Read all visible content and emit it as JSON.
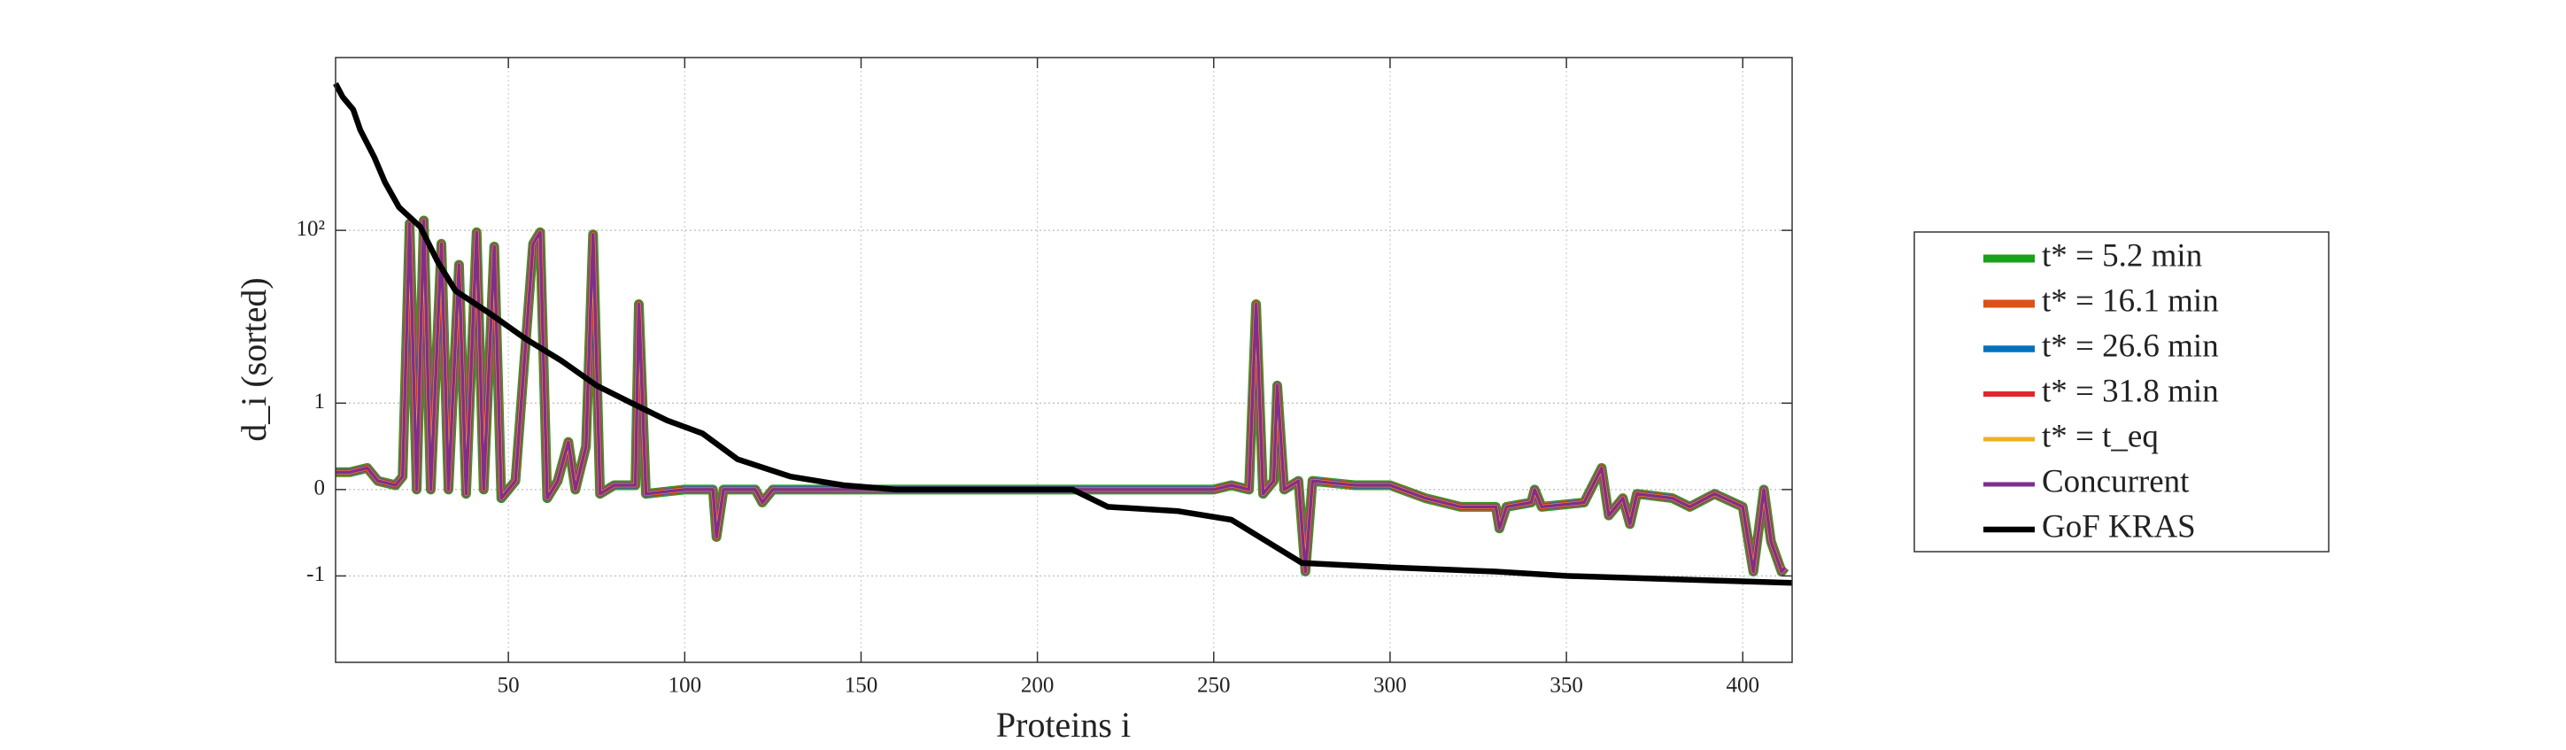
{
  "chart_data": {
    "type": "line",
    "x_label": "Proteins i",
    "y_label": "d_i (sorted)",
    "xlim": [
      1,
      414
    ],
    "xticks": [
      50,
      100,
      150,
      200,
      250,
      300,
      350,
      400
    ],
    "ylim": [
      -10,
      10000
    ],
    "yticks": [
      -1,
      0,
      1,
      {
        "value": 100,
        "label": "10²"
      }
    ],
    "yscale": "symlog",
    "grid": true,
    "legend": "right",
    "series": [
      {
        "name": "t* = 5.2 min",
        "color": "#1aa01a",
        "x": [
          1,
          5,
          10,
          13,
          18,
          20,
          22,
          24,
          26,
          28,
          31,
          33,
          36,
          38,
          41,
          43,
          46,
          48,
          52,
          57,
          59,
          61,
          64,
          67,
          69,
          72,
          74,
          76,
          80,
          86,
          87,
          89,
          100,
          108,
          109,
          111,
          120,
          122,
          125,
          140,
          210,
          230,
          250,
          255,
          260,
          262,
          264,
          267,
          268,
          270,
          274,
          276,
          278,
          290,
          300,
          310,
          320,
          330,
          331,
          333,
          340,
          341,
          343,
          355,
          360,
          362,
          366,
          368,
          370,
          380,
          385,
          392,
          400,
          403,
          406,
          408,
          411,
          412
        ],
        "values": [
          0.2,
          0.2,
          0.25,
          0.1,
          0.05,
          0.15,
          120,
          0,
          130,
          0,
          70,
          0,
          40,
          -0.05,
          95,
          0,
          65,
          -0.1,
          0.1,
          70,
          95,
          -0.1,
          0.1,
          0.55,
          0,
          0.5,
          90,
          -0.05,
          0.05,
          0.05,
          14,
          -0.05,
          0,
          0,
          -0.55,
          0,
          0,
          -0.15,
          0,
          0,
          0,
          0,
          0,
          0.05,
          0,
          14,
          -0.05,
          0.1,
          1.6,
          0,
          0.1,
          -0.95,
          0.1,
          0.05,
          0.05,
          -0.1,
          -0.2,
          -0.2,
          -0.45,
          -0.2,
          -0.15,
          0,
          -0.2,
          -0.15,
          0.25,
          -0.3,
          -0.1,
          -0.4,
          -0.05,
          -0.1,
          -0.2,
          -0.05,
          -0.2,
          -0.95,
          0,
          -0.6,
          -0.95,
          -0.9
        ]
      },
      {
        "name": "t* = 16.1 min",
        "color": "#d95319",
        "x": [
          1,
          5,
          10,
          13,
          18,
          20,
          22,
          24,
          26,
          28,
          31,
          33,
          36,
          38,
          41,
          43,
          46,
          48,
          52,
          57,
          59,
          61,
          64,
          67,
          69,
          72,
          74,
          76,
          80,
          86,
          87,
          89,
          100,
          108,
          109,
          111,
          120,
          122,
          125,
          140,
          210,
          230,
          250,
          255,
          260,
          262,
          264,
          267,
          268,
          270,
          274,
          276,
          278,
          290,
          300,
          310,
          320,
          330,
          331,
          333,
          340,
          341,
          343,
          355,
          360,
          362,
          366,
          368,
          370,
          380,
          385,
          392,
          400,
          403,
          406,
          408,
          411,
          412
        ],
        "values": [
          0.2,
          0.2,
          0.25,
          0.1,
          0.05,
          0.15,
          120,
          0,
          130,
          0,
          70,
          0,
          40,
          -0.05,
          95,
          0,
          65,
          -0.1,
          0.1,
          70,
          95,
          -0.1,
          0.1,
          0.55,
          0,
          0.5,
          90,
          -0.05,
          0.05,
          0.05,
          14,
          -0.05,
          0,
          0,
          -0.55,
          0,
          0,
          -0.15,
          0,
          0,
          0,
          0,
          0,
          0.05,
          0,
          14,
          -0.05,
          0.1,
          1.6,
          0,
          0.1,
          -0.95,
          0.1,
          0.05,
          0.05,
          -0.1,
          -0.2,
          -0.2,
          -0.45,
          -0.2,
          -0.15,
          0,
          -0.2,
          -0.15,
          0.25,
          -0.3,
          -0.1,
          -0.4,
          -0.05,
          -0.1,
          -0.2,
          -0.05,
          -0.2,
          -0.95,
          0,
          -0.6,
          -0.95,
          -0.9
        ]
      },
      {
        "name": "t* = 26.6 min",
        "color": "#0072bd",
        "x": [
          1,
          5,
          10,
          13,
          18,
          20,
          22,
          24,
          26,
          28,
          31,
          33,
          36,
          38,
          41,
          43,
          46,
          48,
          52,
          57,
          59,
          61,
          64,
          67,
          69,
          72,
          74,
          76,
          80,
          86,
          87,
          89,
          100,
          108,
          109,
          111,
          120,
          122,
          125,
          140,
          210,
          230,
          250,
          255,
          260,
          262,
          264,
          267,
          268,
          270,
          274,
          276,
          278,
          290,
          300,
          310,
          320,
          330,
          331,
          333,
          340,
          341,
          343,
          355,
          360,
          362,
          366,
          368,
          370,
          380,
          385,
          392,
          400,
          403,
          406,
          408,
          411,
          412
        ],
        "values": [
          0.2,
          0.2,
          0.25,
          0.1,
          0.05,
          0.15,
          120,
          0,
          130,
          0,
          70,
          0,
          40,
          -0.05,
          95,
          0,
          65,
          -0.1,
          0.1,
          70,
          95,
          -0.1,
          0.1,
          0.55,
          0,
          0.5,
          90,
          -0.05,
          0.05,
          0.05,
          14,
          -0.05,
          0,
          0,
          -0.55,
          0,
          0,
          -0.15,
          0,
          0,
          0,
          0,
          0,
          0.05,
          0,
          14,
          -0.05,
          0.1,
          1.6,
          0,
          0.1,
          -0.95,
          0.1,
          0.05,
          0.05,
          -0.1,
          -0.2,
          -0.2,
          -0.45,
          -0.2,
          -0.15,
          0,
          -0.2,
          -0.15,
          0.25,
          -0.3,
          -0.1,
          -0.4,
          -0.05,
          -0.1,
          -0.2,
          -0.05,
          -0.2,
          -0.95,
          0,
          -0.6,
          -0.95,
          -0.9
        ]
      },
      {
        "name": "t* = 31.8 min",
        "color": "#e3262a",
        "x": [
          1,
          5,
          10,
          13,
          18,
          20,
          22,
          24,
          26,
          28,
          31,
          33,
          36,
          38,
          41,
          43,
          46,
          48,
          52,
          57,
          59,
          61,
          64,
          67,
          69,
          72,
          74,
          76,
          80,
          86,
          87,
          89,
          100,
          108,
          109,
          111,
          120,
          122,
          125,
          140,
          210,
          230,
          250,
          255,
          260,
          262,
          264,
          267,
          268,
          270,
          274,
          276,
          278,
          290,
          300,
          310,
          320,
          330,
          331,
          333,
          340,
          341,
          343,
          355,
          360,
          362,
          366,
          368,
          370,
          380,
          385,
          392,
          400,
          403,
          406,
          408,
          411,
          412
        ],
        "values": [
          0.2,
          0.2,
          0.25,
          0.1,
          0.05,
          0.15,
          120,
          0,
          130,
          0,
          70,
          0,
          40,
          -0.05,
          95,
          0,
          65,
          -0.1,
          0.1,
          70,
          95,
          -0.1,
          0.1,
          0.55,
          0,
          0.5,
          90,
          -0.05,
          0.05,
          0.05,
          14,
          -0.05,
          0,
          0,
          -0.55,
          0,
          0,
          -0.15,
          0,
          0,
          0,
          0,
          0,
          0.05,
          0,
          14,
          -0.05,
          0.1,
          1.6,
          0,
          0.1,
          -0.95,
          0.1,
          0.05,
          0.05,
          -0.1,
          -0.2,
          -0.2,
          -0.45,
          -0.2,
          -0.15,
          0,
          -0.2,
          -0.15,
          0.25,
          -0.3,
          -0.1,
          -0.4,
          -0.05,
          -0.1,
          -0.2,
          -0.05,
          -0.2,
          -0.95,
          0,
          -0.6,
          -0.95,
          -0.9
        ]
      },
      {
        "name": "t* = t_eq",
        "color": "#edb120",
        "x": [
          1,
          5,
          10,
          13,
          18,
          20,
          22,
          24,
          26,
          28,
          31,
          33,
          36,
          38,
          41,
          43,
          46,
          48,
          52,
          57,
          59,
          61,
          64,
          67,
          69,
          72,
          74,
          76,
          80,
          86,
          87,
          89,
          100,
          108,
          109,
          111,
          120,
          122,
          125,
          140,
          210,
          230,
          250,
          255,
          260,
          262,
          264,
          267,
          268,
          270,
          274,
          276,
          278,
          290,
          300,
          310,
          320,
          330,
          331,
          333,
          340,
          341,
          343,
          355,
          360,
          362,
          366,
          368,
          370,
          380,
          385,
          392,
          400,
          403,
          406,
          408,
          411,
          412
        ],
        "values": [
          0.2,
          0.2,
          0.25,
          0.1,
          0.05,
          0.15,
          120,
          0,
          130,
          0,
          70,
          0,
          40,
          -0.05,
          95,
          0,
          65,
          -0.1,
          0.1,
          70,
          95,
          -0.1,
          0.1,
          0.55,
          0,
          0.5,
          90,
          -0.05,
          0.05,
          0.05,
          14,
          -0.05,
          0,
          0,
          -0.55,
          0,
          0,
          -0.15,
          0,
          0,
          0,
          0,
          0,
          0.05,
          0,
          14,
          -0.05,
          0.1,
          1.6,
          0,
          0.1,
          -0.95,
          0.1,
          0.05,
          0.05,
          -0.1,
          -0.2,
          -0.2,
          -0.45,
          -0.2,
          -0.15,
          0,
          -0.2,
          -0.15,
          0.25,
          -0.3,
          -0.1,
          -0.4,
          -0.05,
          -0.1,
          -0.2,
          -0.05,
          -0.2,
          -0.95,
          0,
          -0.6,
          -0.95,
          -0.9
        ]
      },
      {
        "name": "Concurrent",
        "color": "#7e2f8e",
        "x": [
          1,
          5,
          10,
          13,
          18,
          20,
          22,
          24,
          26,
          28,
          31,
          33,
          36,
          38,
          41,
          43,
          46,
          48,
          52,
          57,
          59,
          61,
          64,
          67,
          69,
          72,
          74,
          76,
          80,
          86,
          87,
          89,
          100,
          108,
          109,
          111,
          120,
          122,
          125,
          140,
          210,
          230,
          250,
          255,
          260,
          262,
          264,
          267,
          268,
          270,
          274,
          276,
          278,
          290,
          300,
          310,
          320,
          330,
          331,
          333,
          340,
          341,
          343,
          355,
          360,
          362,
          366,
          368,
          370,
          380,
          385,
          392,
          400,
          403,
          406,
          408,
          411,
          412
        ],
        "values": [
          0.2,
          0.2,
          0.25,
          0.1,
          0.05,
          0.15,
          120,
          0,
          130,
          0,
          70,
          0,
          40,
          -0.05,
          95,
          0,
          65,
          -0.1,
          0.1,
          70,
          95,
          -0.1,
          0.1,
          0.55,
          0,
          0.5,
          90,
          -0.05,
          0.05,
          0.05,
          14,
          -0.05,
          0,
          0,
          -0.55,
          0,
          0,
          -0.15,
          0,
          0,
          0,
          0,
          0,
          0.05,
          0,
          14,
          -0.05,
          0.1,
          1.6,
          0,
          0.1,
          -0.95,
          0.1,
          0.05,
          0.05,
          -0.1,
          -0.2,
          -0.2,
          -0.45,
          -0.2,
          -0.15,
          0,
          -0.2,
          -0.15,
          0.25,
          -0.3,
          -0.1,
          -0.4,
          -0.05,
          -0.1,
          -0.2,
          -0.05,
          -0.2,
          -0.95,
          0,
          -0.6,
          -0.95,
          -0.9
        ]
      },
      {
        "name": "GoF KRAS",
        "color": "#000000",
        "x": [
          1,
          3,
          6,
          8,
          12,
          15,
          19,
          25,
          30,
          35,
          45,
          55,
          65,
          75,
          85,
          95,
          105,
          115,
          130,
          145,
          160,
          210,
          220,
          240,
          255,
          265,
          275,
          300,
          330,
          350,
          380,
          414
        ],
        "values": [
          5000,
          3500,
          2500,
          1450,
          700,
          360,
          185,
          110,
          43,
          20,
          10.7,
          5.5,
          3.1,
          1.6,
          1,
          0.8,
          0.65,
          0.35,
          0.15,
          0.05,
          0,
          0,
          -0.2,
          -0.25,
          -0.35,
          -0.6,
          -0.85,
          -0.9,
          -0.95,
          -1,
          -1.09,
          -1.2
        ]
      }
    ]
  }
}
